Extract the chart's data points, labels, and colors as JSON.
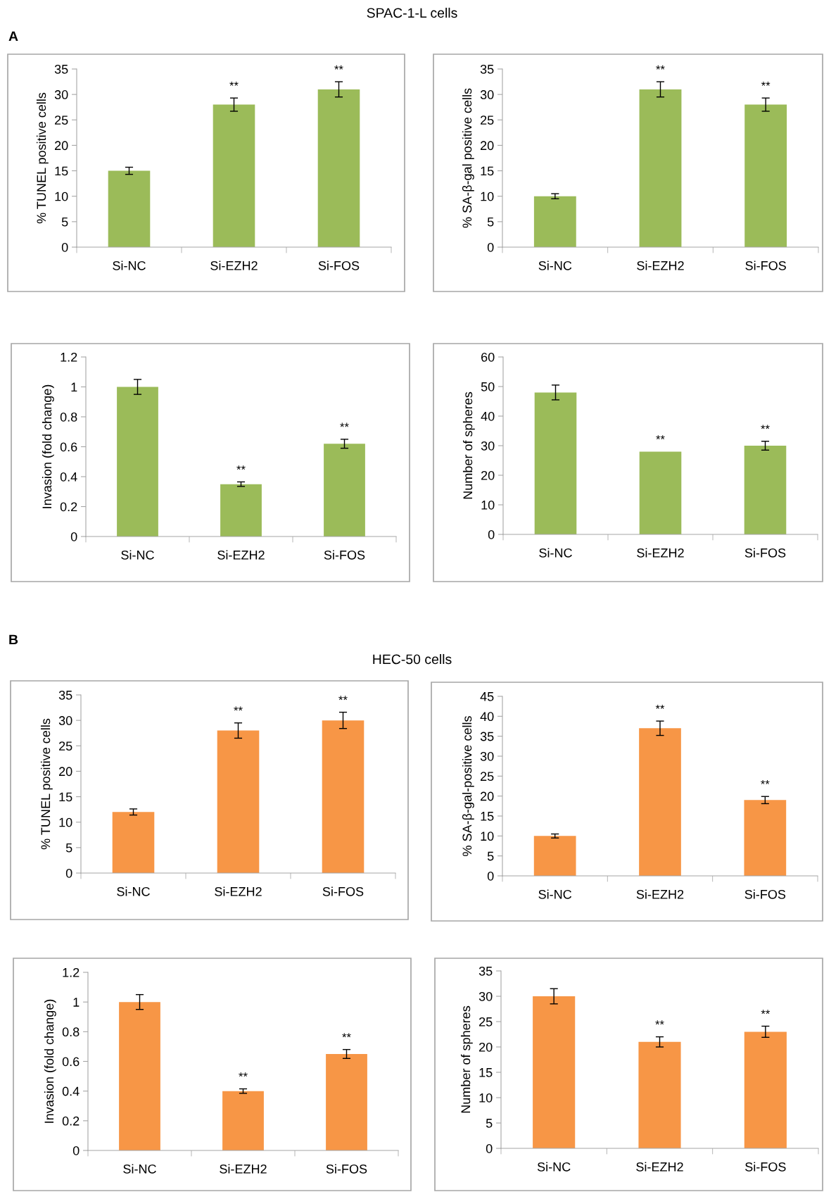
{
  "chart_data": [
    {
      "type": "bar",
      "title": "SPAC-1-L cells",
      "ylabel": "% TUNEL positive cells",
      "categories": [
        "Si-NC",
        "Si-EZH2",
        "Si-FOS"
      ],
      "values": [
        15,
        28,
        31
      ],
      "errors": [
        0.7,
        1.3,
        1.5
      ],
      "value_labels": [
        null,
        "**",
        "**"
      ],
      "color": "#9bbb59",
      "ylim": [
        0,
        35
      ],
      "yticks": [
        0,
        5,
        10,
        15,
        20,
        25,
        30,
        35
      ],
      "annotations": [
        "A"
      ]
    },
    {
      "type": "bar",
      "ylabel": "% SA-β-gal positive cells",
      "categories": [
        "Si-NC",
        "Si-EZH2",
        "Si-FOS"
      ],
      "values": [
        10,
        31,
        28
      ],
      "errors": [
        0.5,
        1.5,
        1.3
      ],
      "value_labels": [
        null,
        "**",
        "**"
      ],
      "color": "#9bbb59",
      "ylim": [
        0,
        35
      ],
      "yticks": [
        0,
        5,
        10,
        15,
        20,
        25,
        30,
        35
      ]
    },
    {
      "type": "bar",
      "ylabel": "Invasion (fold change)",
      "categories": [
        "Si-NC",
        "Si-EZH2",
        "Si-FOS"
      ],
      "values": [
        1,
        0.35,
        0.62
      ],
      "errors": [
        0.05,
        0.015,
        0.03
      ],
      "value_labels": [
        null,
        "**",
        "**"
      ],
      "color": "#9bbb59",
      "ylim": [
        0,
        1.2
      ],
      "yticks": [
        0,
        0.2,
        0.4,
        0.6,
        0.8,
        1,
        1.2
      ]
    },
    {
      "type": "bar",
      "ylabel": "Number of spheres",
      "categories": [
        "Si-NC",
        "Si-EZH2",
        "Si-FOS"
      ],
      "values": [
        48,
        28,
        30
      ],
      "errors": [
        2.5,
        null,
        1.5
      ],
      "value_labels": [
        null,
        "**",
        "**"
      ],
      "color": "#9bbb59",
      "ylim": [
        0,
        60
      ],
      "yticks": [
        0,
        10,
        20,
        30,
        40,
        50,
        60
      ]
    },
    {
      "type": "bar",
      "title": "HEC-50 cells",
      "ylabel": "% TUNEL positive cells",
      "categories": [
        "Si-NC",
        "Si-EZH2",
        "Si-FOS"
      ],
      "values": [
        12,
        28,
        30
      ],
      "errors": [
        0.6,
        1.5,
        1.6
      ],
      "value_labels": [
        null,
        "**",
        "**"
      ],
      "color": "#f79646",
      "ylim": [
        0,
        35
      ],
      "yticks": [
        0,
        5,
        10,
        15,
        20,
        25,
        30,
        35
      ],
      "annotations": [
        "B"
      ]
    },
    {
      "type": "bar",
      "ylabel": "% SA-β-gal-positive cells",
      "categories": [
        "Si-NC",
        "Si-EZH2",
        "Si-FOS"
      ],
      "values": [
        10,
        37,
        19
      ],
      "errors": [
        0.5,
        1.8,
        0.9
      ],
      "value_labels": [
        null,
        "**",
        "**"
      ],
      "color": "#f79646",
      "ylim": [
        0,
        45
      ],
      "yticks": [
        0,
        5,
        10,
        15,
        20,
        25,
        30,
        35,
        40,
        45
      ]
    },
    {
      "type": "bar",
      "ylabel": "Invasion (fold change)",
      "categories": [
        "Si-NC",
        "Si-EZH2",
        "Si-FOS"
      ],
      "values": [
        1,
        0.4,
        0.65
      ],
      "errors": [
        0.05,
        0.015,
        0.03
      ],
      "value_labels": [
        null,
        "**",
        "**"
      ],
      "color": "#f79646",
      "ylim": [
        0,
        1.2
      ],
      "yticks": [
        0,
        0.2,
        0.4,
        0.6,
        0.8,
        1,
        1.2
      ]
    },
    {
      "type": "bar",
      "ylabel": "Number of spheres",
      "categories": [
        "Si-NC",
        "Si-EZH2",
        "Si-FOS"
      ],
      "values": [
        30,
        21,
        23
      ],
      "errors": [
        1.5,
        1,
        1.1
      ],
      "value_labels": [
        null,
        "**",
        "**"
      ],
      "color": "#f79646",
      "ylim": [
        0,
        35
      ],
      "yticks": [
        0,
        5,
        10,
        15,
        20,
        25,
        30,
        35
      ]
    }
  ]
}
